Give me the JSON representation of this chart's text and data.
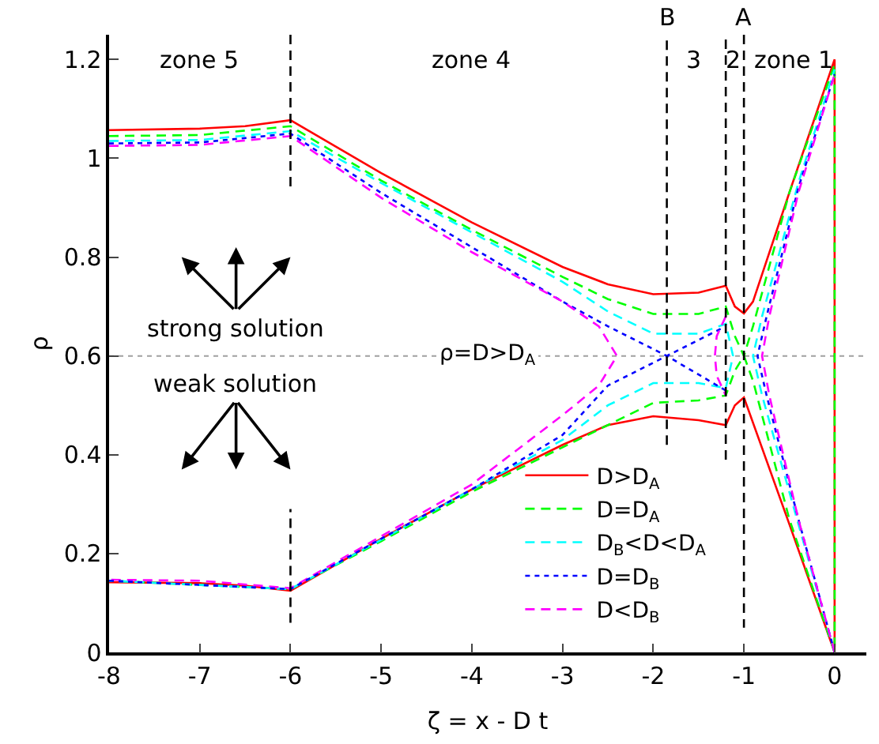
{
  "chart_data": {
    "type": "line",
    "xlabel": "ζ = x - D t",
    "ylabel": "ρ",
    "xlim": [
      -8,
      0.35
    ],
    "ylim": [
      0,
      1.25
    ],
    "xticks": [
      -8,
      -7,
      -6,
      -5,
      -4,
      -3,
      -2,
      -1,
      0
    ],
    "yticks": [
      0,
      0.2,
      0.4,
      0.6,
      0.8,
      1,
      1.2
    ],
    "grid": false,
    "legend": "bottom right",
    "marker": "none",
    "series": [
      {
        "name": "D>D$_{A}$",
        "color": "#ff0000",
        "line_style": "solid",
        "x": [
          -8,
          -7,
          -6.5,
          -6,
          -5,
          -4,
          -3,
          -2.5,
          -2,
          -1.5,
          -1.2,
          -1.1,
          -1,
          -0.9,
          -0.5,
          0,
          0,
          -0.5,
          -1,
          -1.1,
          -1.2,
          -1.5,
          -2,
          -2.5,
          -3,
          -4,
          -5,
          -6,
          -6.5,
          -7,
          -8
        ],
        "values": [
          1.057,
          1.06,
          1.065,
          1.077,
          0.97,
          0.87,
          0.78,
          0.745,
          0.725,
          0.728,
          0.742,
          0.7,
          0.686,
          0.71,
          0.93,
          1.2,
          0,
          0.26,
          0.516,
          0.5,
          0.46,
          0.47,
          0.478,
          0.46,
          0.42,
          0.33,
          0.23,
          0.125,
          0.135,
          0.14,
          0.142
        ]
      },
      {
        "name": "D=D$_{A}$",
        "color": "#00ff00",
        "line_style": "dashed",
        "x": [
          -8,
          -7,
          -6,
          -5,
          -4,
          -3,
          -2.5,
          -2,
          -1.5,
          -1.2,
          -1.1,
          -1,
          -0.9,
          -0.5,
          0,
          0,
          -0.5,
          -0.9,
          -1,
          -1.1,
          -1.2,
          -1.5,
          -2,
          -2.5,
          -3,
          -4,
          -5,
          -6,
          -8
        ],
        "values": [
          1.045,
          1.047,
          1.065,
          0.955,
          0.855,
          0.76,
          0.715,
          0.685,
          0.685,
          0.7,
          0.64,
          0.6,
          0.66,
          0.93,
          1.19,
          0,
          0.27,
          0.55,
          0.6,
          0.57,
          0.52,
          0.51,
          0.505,
          0.46,
          0.415,
          0.325,
          0.225,
          0.128,
          0.145
        ]
      },
      {
        "name": "D$_{B}$<D<D$_{A}$",
        "color": "#00ffff",
        "line_style": "dashed",
        "x": [
          -8,
          -7,
          -6,
          -5,
          -4,
          -3,
          -2.5,
          -2,
          -1.5,
          -1.2,
          -1.12,
          -1.2,
          -1.5,
          -2,
          -2.5,
          -3,
          -4,
          -5,
          -6,
          -8
        ],
        "values": [
          1.035,
          1.037,
          1.055,
          0.95,
          0.85,
          0.75,
          0.69,
          0.645,
          0.645,
          0.665,
          0.6,
          0.535,
          0.545,
          0.545,
          0.5,
          0.43,
          0.33,
          0.228,
          0.128,
          0.145
        ]
      },
      {
        "name": "D=D$_{B}$",
        "color": "#0000ff",
        "line_style": "dotted",
        "x": [
          -8,
          -7,
          -6,
          -5,
          -4,
          -3,
          -2.5,
          -1.85,
          -1.2
        ],
        "values": [
          1.03,
          1.032,
          1.05,
          0.93,
          0.82,
          0.71,
          0.66,
          0.6,
          0.53
        ]
      },
      {
        "name": "D<D$_{B}$",
        "color": "#ff00ff",
        "line_style": "dashed",
        "x": [
          -8,
          -7,
          -6,
          -5,
          -4,
          -3,
          -2.6,
          -2.4,
          -2.6,
          -3,
          -4,
          -5,
          -6,
          -7,
          -8
        ],
        "values": [
          1.025,
          1.027,
          1.045,
          0.92,
          0.81,
          0.71,
          0.66,
          0.6,
          0.54,
          0.48,
          0.34,
          0.235,
          0.13,
          0.145,
          0.147
        ]
      },
      {
        "color": "#00ffff",
        "line_style": "dashed",
        "x": [
          0,
          -0.4,
          -0.8,
          -0.9,
          -0.8,
          -0.4,
          0
        ],
        "values": [
          0,
          0.26,
          0.52,
          0.6,
          0.68,
          0.95,
          1.18
        ]
      },
      {
        "color": "#0000ff",
        "line_style": "dotted",
        "x": [
          -8,
          -6,
          -5,
          -4,
          -3,
          -2.5,
          -1.85,
          -1.2
        ],
        "values": [
          0.145,
          0.128,
          0.23,
          0.33,
          0.44,
          0.54,
          0.6,
          0.66
        ]
      },
      {
        "color": "#0000ff",
        "line_style": "dotted",
        "x": [
          0,
          -0.4,
          -0.75,
          -0.85,
          -0.75,
          -0.4,
          0
        ],
        "values": [
          0,
          0.27,
          0.52,
          0.6,
          0.68,
          0.94,
          1.17
        ]
      },
      {
        "color": "#ff00ff",
        "line_style": "dashed",
        "x": [
          -1.2,
          -1.3,
          -1.32,
          -1.3,
          -1.2
        ],
        "values": [
          0.68,
          0.64,
          0.6,
          0.56,
          0.52
        ]
      },
      {
        "color": "#ff00ff",
        "line_style": "dashed",
        "x": [
          0,
          -0.4,
          -0.72,
          -0.8,
          -0.72,
          -0.4,
          0
        ],
        "values": [
          0,
          0.27,
          0.52,
          0.6,
          0.68,
          0.93,
          1.17
        ]
      },
      {
        "color": "#000000",
        "line_style": "dashed",
        "x": [
          -6,
          -6
        ],
        "values": [
          1.25,
          0.94
        ]
      },
      {
        "color": "#000000",
        "line_style": "dashed",
        "x": [
          -6,
          -6
        ],
        "values": [
          0.06,
          0.29
        ]
      },
      {
        "color": "#000000",
        "line_style": "dashed",
        "x": [
          -1.85,
          -1.85
        ],
        "values": [
          0.42,
          1.25
        ]
      },
      {
        "color": "#000000",
        "line_style": "dashed",
        "x": [
          -1.2,
          -1.2
        ],
        "values": [
          0.39,
          1.25
        ]
      },
      {
        "color": "#000000",
        "line_style": "dashed",
        "x": [
          -1,
          -1
        ],
        "values": [
          1.25,
          0.05
        ]
      }
    ],
    "ref_lines": [
      {
        "axis": "y",
        "value": 0.6,
        "label": "ρ=D>D$_{A}$",
        "color": "#a0a0a0",
        "line_style": "dotted"
      }
    ],
    "annotations": [
      "zone 5",
      "zone 4",
      "3",
      "2",
      "zone 1",
      "B",
      "A",
      "strong solution",
      "weak solution"
    ]
  }
}
